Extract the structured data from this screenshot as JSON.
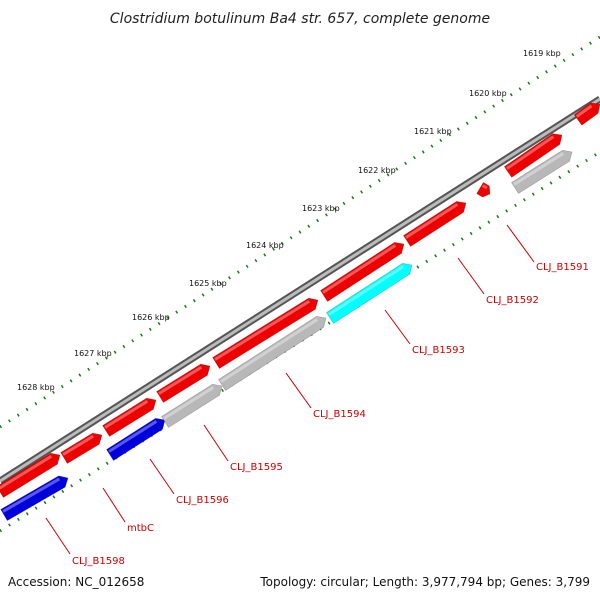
{
  "title": "Clostridium botulinum Ba4 str. 657, complete genome",
  "ticks": [
    "1619 kbp",
    "1620 kbp",
    "1621 kbp",
    "1622 kbp",
    "1623 kbp",
    "1624 kbp",
    "1625 kbp",
    "1626 kbp",
    "1627 kbp",
    "1628 kbp"
  ],
  "gene_labels": [
    "CLJ_B1591",
    "CLJ_B1592",
    "CLJ_B1593",
    "CLJ_B1594",
    "CLJ_B1595",
    "CLJ_B1596",
    "mtbC",
    "CLJ_B1598"
  ],
  "colors": {
    "backbone": "#777777",
    "forward_gene": "#ee0000",
    "reverse_gray": "#b8b8b8",
    "reverse_blue": "#0000dd",
    "highlight": "#00ffff",
    "tick": "#1a7a1a",
    "label": "#cc0000"
  },
  "footer": {
    "accession": "Accession: NC_012658",
    "topology": "Topology: circular; Length: 3,977,794 bp; Genes: 3,799"
  }
}
